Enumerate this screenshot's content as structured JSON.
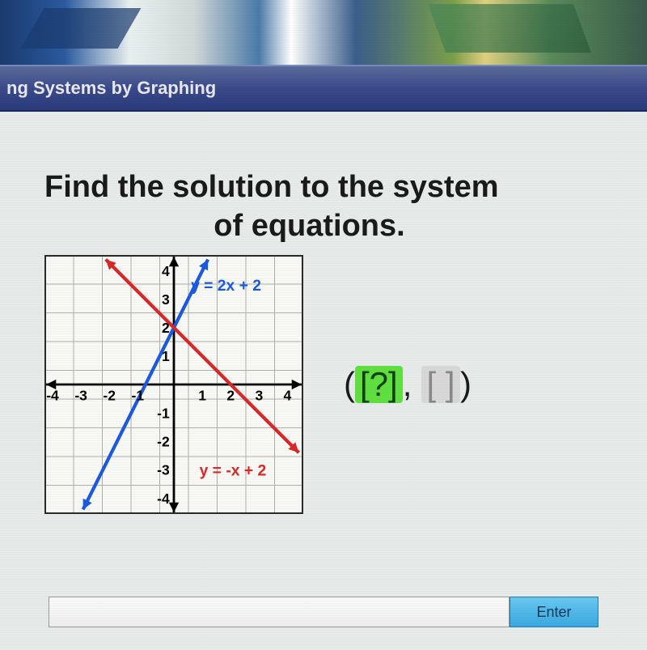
{
  "titlebar": {
    "text": "ng Systems by Graphing"
  },
  "question": {
    "line1": "Find the solution to the system",
    "line2": "of equations."
  },
  "graph": {
    "xmin": -4.5,
    "xmax": 4.5,
    "ymin": -4.5,
    "ymax": 4.5,
    "xticks": [
      -4,
      -3,
      -2,
      -1,
      1,
      2,
      3,
      4
    ],
    "yticks": [
      -4,
      -3,
      -2,
      -1,
      1,
      2,
      3,
      4
    ],
    "grid_color": "#b0b0a8",
    "axis_color": "#000000",
    "line1": {
      "label": "y = 2x + 2",
      "color_hex": "#1a5adf",
      "label_color": "#1a5adf",
      "slope": 2,
      "intercept": 2,
      "p1": [
        -3.2,
        -4.4
      ],
      "p2": [
        1.2,
        4.4
      ]
    },
    "line2": {
      "label": "y = -x + 2",
      "color_hex": "#d82828",
      "label_color": "#d82828",
      "slope": -1,
      "intercept": 2,
      "p1": [
        -2.4,
        4.4
      ],
      "p2": [
        4.4,
        -2.4
      ]
    },
    "tick_font_size": 15,
    "label_font_size": 17
  },
  "answer": {
    "prefix": "(",
    "box1": "[?]",
    "sep": ", ",
    "box2": "[ ]",
    "suffix": ")",
    "active_bg": "#60e040",
    "inactive_bg": "#d8d8d8"
  },
  "input": {
    "placeholder": "",
    "button_label": "Enter"
  }
}
